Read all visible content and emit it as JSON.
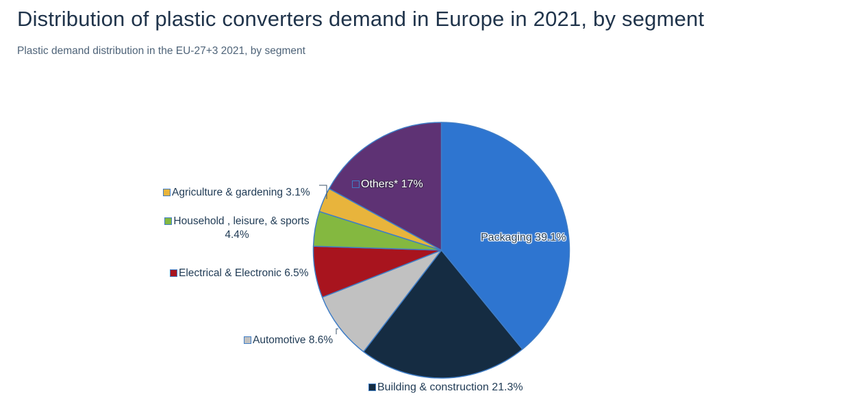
{
  "header": {
    "title": "Distribution of plastic converters demand in Europe in 2021, by segment",
    "subtitle": "Plastic demand distribution in the EU-27+3 2021, by segment"
  },
  "chart_data": {
    "type": "pie",
    "title": "Distribution of plastic converters demand in Europe in 2021, by segment",
    "unit": "%",
    "direction": "clockwise",
    "start_angle": "12-oclock",
    "legend_position": "labels-around-pie",
    "segments": [
      {
        "label": "Packaging",
        "value": 39.1,
        "display": "Packaging 39.1%",
        "color": "#2e75d0"
      },
      {
        "label": "Building & construction",
        "value": 21.3,
        "display": "Building & construction 21.3%",
        "color": "#152c42"
      },
      {
        "label": "Automotive",
        "value": 8.6,
        "display": "Automotive 8.6%",
        "color": "#c1c1c1"
      },
      {
        "label": "Electrical & Electronic",
        "value": 6.5,
        "display": "Electrical & Electronic 6.5%",
        "color": "#a8141e"
      },
      {
        "label": "Household , leisure, & sports",
        "value": 4.4,
        "display_line1": "Household , leisure, & sports",
        "display_line2": "4.4%",
        "color": "#84b840"
      },
      {
        "label": "Agriculture & gardening",
        "value": 3.1,
        "display": "Agriculture & gardening 3.1%",
        "color": "#e8b43c"
      },
      {
        "label": "Others*",
        "value": 17,
        "display": "Others* 17%",
        "color": "#5e3274"
      }
    ]
  },
  "colors": {
    "background": "#ffffff",
    "title_text": "#20344b",
    "subtitle_text": "#4e6378",
    "label_text": "#1f3a54",
    "others_label_text": "#ffffff",
    "slice_border": "#3f7dc6",
    "leader_line": "#3a5068"
  }
}
